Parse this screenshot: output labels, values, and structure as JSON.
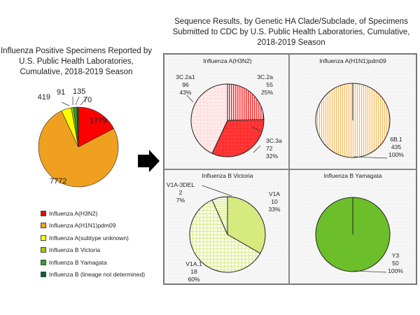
{
  "chart_data": [
    {
      "id": "positive-specimens",
      "type": "pie",
      "title": "Influenza Positive Specimens Reported by\nU.S. Public Health Laboratories,\nCumulative, 2018-2019 Season",
      "start": "top",
      "direction": "clockwise",
      "slices": [
        {
          "label": "Influenza A(H3N2)",
          "value": 1779,
          "color": "#ff0000"
        },
        {
          "label": "Influenza A(H1N1)pdm09",
          "value": 7772,
          "color": "#f0a020"
        },
        {
          "label": "Influenza A(subtype unknown)",
          "value": 419,
          "color": "#ffff00"
        },
        {
          "label": "Influenza B Victoria",
          "value": 91,
          "color": "#99cc00"
        },
        {
          "label": "Influenza B Yamagata",
          "value": 135,
          "color": "#33a02c"
        },
        {
          "label": "Influenza B (lineage not determined)",
          "value": 70,
          "color": "#006633"
        }
      ],
      "legend": "bottom"
    },
    {
      "id": "h3n2",
      "type": "pie",
      "title": "Influenza A(H3N2)",
      "start": "top",
      "direction": "clockwise",
      "slices": [
        {
          "label": "3C.2a",
          "value": 55,
          "percent": "25%",
          "color": "#ff4d4d",
          "pattern": "vertical-lines"
        },
        {
          "label": "3C.3a",
          "value": 72,
          "percent": "32%",
          "color": "#ff2020",
          "pattern": "checker"
        },
        {
          "label": "3C.2a1",
          "value": 96,
          "percent": "43%",
          "color": "#ffd0d0",
          "pattern": "dots"
        }
      ]
    },
    {
      "id": "h1n1",
      "type": "pie",
      "title": "Influenza A(H1N1)pdm09",
      "start": "top",
      "direction": "clockwise",
      "slices": [
        {
          "label": "6B.1",
          "value": 435,
          "percent": "100%",
          "color": "#f7c27a",
          "pattern": "vertical-lines"
        }
      ]
    },
    {
      "id": "bvic",
      "type": "pie",
      "title": "Influenza B Victoria",
      "start": "top",
      "direction": "clockwise",
      "slices": [
        {
          "label": "V1A",
          "value": 10,
          "percent": "33%",
          "color": "#d4ea7a",
          "pattern": "solid"
        },
        {
          "label": "V1A.1",
          "value": 18,
          "percent": "60%",
          "color": "#f4f8d0",
          "pattern": "grid"
        },
        {
          "label": "V1A-3DEL",
          "value": 2,
          "percent": "7%",
          "color": "#eef5c0",
          "pattern": "horizontal-lines"
        }
      ]
    },
    {
      "id": "byam",
      "type": "pie",
      "title": "Influenza B Yamagata",
      "start": "top",
      "direction": "clockwise",
      "slices": [
        {
          "label": "Y3",
          "value": 50,
          "percent": "100%",
          "color": "#6cbf2a",
          "pattern": "solid"
        }
      ]
    }
  ],
  "left_title": "Influenza Positive Specimens Reported by\nU.S. Public Health Laboratories,\nCumulative, 2018-2019 Season",
  "right_title": "Sequence Results, by Genetic HA Clade/Subclade, of Specimens\nSubmitted to CDC by U.S. Public Health Laboratories, Cumulative,\n2018-2019 Season",
  "arrow_icon": "right-arrow"
}
